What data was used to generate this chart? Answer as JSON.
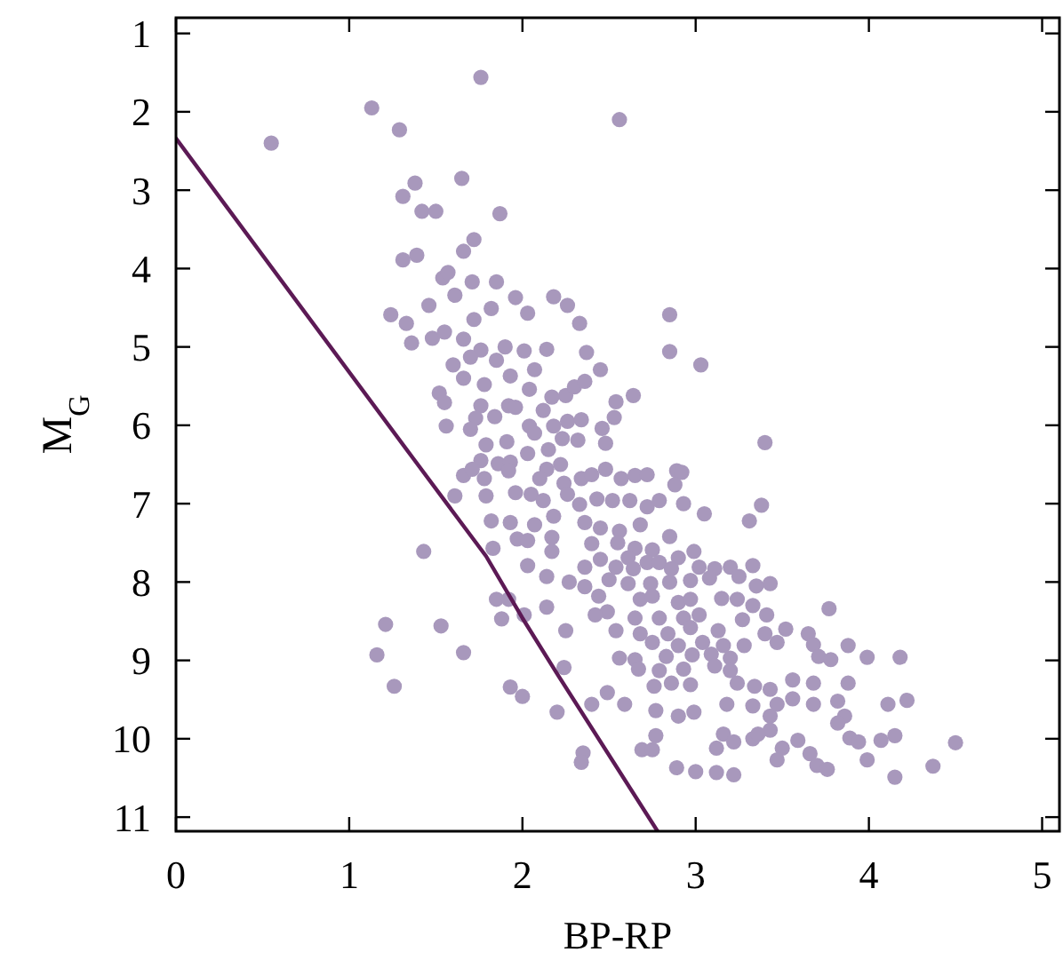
{
  "chart_data": {
    "type": "scatter",
    "xlabel": "BP-RP",
    "ylabel": "M$_{G}$",
    "xlim": [
      0,
      5.1
    ],
    "ylim": [
      11.18,
      0.8
    ],
    "xticks": [
      0,
      1,
      2,
      3,
      4,
      5
    ],
    "yticks": [
      1,
      2,
      3,
      4,
      5,
      6,
      7,
      8,
      9,
      10,
      11
    ],
    "grid": false,
    "marker": "circle",
    "series": [
      {
        "color": "#a898bc",
        "x": [
          1.76,
          1.13,
          2.56,
          0.55,
          1.29,
          1.38,
          1.65,
          1.31,
          1.42,
          1.5,
          1.87,
          1.72,
          1.66,
          1.31,
          1.39,
          1.54,
          1.57,
          1.71,
          1.85,
          1.61,
          1.46,
          1.24,
          1.33,
          1.36,
          1.48,
          1.55,
          1.72,
          1.82,
          1.96,
          2.03,
          2.18,
          2.26,
          2.33,
          2.85,
          2.85,
          3.03,
          1.66,
          1.76,
          1.85,
          1.9,
          2.01,
          2.14,
          1.6,
          1.7,
          2.07,
          2.37,
          2.45,
          1.66,
          1.78,
          1.93,
          2.04,
          1.52,
          1.55,
          1.76,
          1.92,
          1.96,
          2.17,
          2.25,
          2.3,
          2.36,
          2.54,
          2.64,
          2.53,
          1.56,
          1.73,
          1.84,
          2.04,
          2.12,
          1.7,
          2.18,
          2.26,
          2.34,
          2.23,
          2.46,
          2.48,
          3.4,
          2.07,
          1.79,
          1.91,
          2.03,
          2.15,
          2.32,
          1.76,
          1.86,
          1.93,
          1.66,
          1.71,
          1.78,
          1.92,
          2.14,
          2.22,
          2.1,
          2.24,
          2.34,
          2.4,
          2.48,
          2.57,
          2.65,
          2.72,
          2.89,
          2.92,
          2.88,
          1.61,
          1.79,
          1.96,
          2.05,
          2.12,
          2.26,
          2.33,
          2.43,
          2.52,
          2.62,
          2.72,
          2.79,
          2.93,
          3.38,
          3.05,
          1.82,
          1.93,
          2.07,
          2.18,
          2.36,
          2.45,
          2.56,
          2.68,
          3.31,
          1.97,
          2.03,
          2.17,
          2.4,
          2.55,
          2.65,
          2.85,
          2.75,
          1.43,
          1.83,
          2.17,
          2.45,
          2.61,
          2.99,
          2.72,
          2.79,
          2.9,
          2.03,
          2.36,
          2.54,
          2.64,
          2.86,
          3.02,
          3.11,
          3.2,
          3.33,
          2.14,
          2.27,
          2.36,
          2.5,
          2.61,
          2.74,
          2.85,
          2.97,
          3.08,
          3.25,
          3.35,
          3.43,
          1.85,
          1.92,
          2.14,
          2.44,
          2.49,
          2.68,
          2.75,
          2.9,
          2.97,
          3.15,
          3.24,
          3.33,
          3.77,
          1.88,
          2.01,
          2.42,
          2.65,
          2.79,
          2.93,
          3.02,
          3.27,
          3.41,
          1.21,
          1.53,
          2.25,
          2.54,
          2.68,
          2.84,
          2.97,
          3.13,
          3.4,
          3.52,
          3.65,
          2.75,
          2.9,
          3.04,
          3.16,
          3.28,
          3.47,
          3.68,
          3.88,
          1.16,
          1.66,
          2.56,
          2.65,
          2.83,
          2.98,
          3.09,
          3.2,
          3.71,
          3.78,
          3.99,
          4.18,
          2.24,
          2.67,
          2.79,
          2.93,
          3.11,
          3.2,
          1.26,
          1.93,
          2.0,
          2.2,
          2.4,
          2.49,
          2.59,
          2.76,
          2.86,
          2.97,
          3.24,
          3.34,
          3.43,
          3.56,
          3.68,
          3.88,
          3.18,
          3.33,
          3.47,
          3.56,
          3.68,
          3.82,
          4.11,
          4.22,
          2.77,
          2.9,
          2.99,
          3.43,
          3.86,
          3.82,
          3.43,
          3.89,
          3.16,
          3.22,
          3.33,
          3.36,
          3.59,
          3.94,
          4.07,
          4.15,
          4.5,
          2.77,
          2.69,
          2.75,
          3.12,
          3.5,
          2.35,
          2.34,
          3.47,
          3.66,
          3.7,
          3.76,
          3.99,
          2.89,
          3.0,
          3.12,
          3.22,
          4.15,
          4.37
        ],
        "values": [
          1.56,
          1.95,
          2.1,
          2.4,
          2.23,
          2.91,
          2.85,
          3.08,
          3.27,
          3.27,
          3.3,
          3.63,
          3.78,
          3.89,
          3.83,
          4.12,
          4.05,
          4.17,
          4.17,
          4.34,
          4.47,
          4.59,
          4.7,
          4.95,
          4.89,
          4.81,
          4.65,
          4.51,
          4.37,
          4.57,
          4.36,
          4.47,
          4.7,
          4.59,
          5.06,
          5.23,
          4.9,
          5.04,
          5.17,
          5.0,
          5.05,
          5.03,
          5.23,
          5.13,
          5.29,
          5.07,
          5.29,
          5.4,
          5.48,
          5.37,
          5.54,
          5.59,
          5.71,
          5.75,
          5.75,
          5.77,
          5.64,
          5.62,
          5.51,
          5.44,
          5.7,
          5.62,
          5.9,
          6.01,
          5.91,
          5.89,
          6.01,
          5.81,
          6.05,
          6.01,
          5.95,
          5.93,
          6.17,
          6.04,
          6.23,
          6.22,
          6.1,
          6.25,
          6.21,
          6.36,
          6.31,
          6.19,
          6.45,
          6.49,
          6.47,
          6.64,
          6.56,
          6.68,
          6.58,
          6.56,
          6.5,
          6.68,
          6.74,
          6.68,
          6.63,
          6.56,
          6.68,
          6.64,
          6.63,
          6.58,
          6.6,
          6.76,
          6.9,
          6.9,
          6.86,
          6.88,
          6.96,
          6.88,
          7.01,
          6.94,
          6.96,
          6.96,
          7.04,
          6.96,
          7.0,
          7.02,
          7.13,
          7.22,
          7.24,
          7.27,
          7.16,
          7.24,
          7.31,
          7.35,
          7.27,
          7.22,
          7.45,
          7.47,
          7.43,
          7.51,
          7.5,
          7.57,
          7.42,
          7.59,
          7.61,
          7.57,
          7.61,
          7.71,
          7.69,
          7.61,
          7.75,
          7.75,
          7.69,
          7.79,
          7.81,
          7.81,
          7.83,
          7.83,
          7.81,
          7.83,
          7.81,
          7.79,
          7.93,
          8.0,
          8.06,
          7.97,
          8.02,
          8.02,
          8.0,
          7.98,
          7.95,
          7.93,
          8.05,
          8.02,
          8.22,
          8.22,
          8.32,
          8.18,
          8.38,
          8.22,
          8.18,
          8.26,
          8.22,
          8.21,
          8.22,
          8.3,
          8.34,
          8.47,
          8.42,
          8.42,
          8.46,
          8.46,
          8.46,
          8.42,
          8.48,
          8.42,
          8.54,
          8.56,
          8.62,
          8.62,
          8.66,
          8.66,
          8.58,
          8.62,
          8.66,
          8.6,
          8.66,
          8.77,
          8.81,
          8.77,
          8.81,
          8.81,
          8.77,
          8.8,
          8.81,
          8.93,
          8.9,
          8.97,
          8.99,
          8.95,
          8.93,
          8.92,
          8.97,
          8.95,
          8.99,
          8.96,
          8.96,
          9.09,
          9.11,
          9.13,
          9.11,
          9.07,
          9.13,
          9.33,
          9.34,
          9.46,
          9.66,
          9.56,
          9.41,
          9.56,
          9.33,
          9.29,
          9.31,
          9.29,
          9.33,
          9.37,
          9.25,
          9.29,
          9.29,
          9.56,
          9.58,
          9.56,
          9.49,
          9.56,
          9.52,
          9.56,
          9.51,
          9.64,
          9.71,
          9.66,
          9.71,
          9.71,
          9.8,
          9.89,
          9.99,
          9.94,
          10.04,
          10.0,
          9.94,
          10.02,
          10.04,
          10.02,
          9.96,
          10.05,
          9.96,
          10.14,
          10.14,
          10.12,
          10.12,
          10.18,
          10.3,
          10.27,
          10.19,
          10.34,
          10.39,
          10.27,
          10.37,
          10.42,
          10.43,
          10.46,
          10.49,
          10.35
        ]
      },
      {
        "type": "line",
        "color": "#5c1a55",
        "marker": "none",
        "line_style": "solid",
        "x": [
          0,
          1.365,
          1.79,
          2.0,
          2.2,
          2.78
        ],
        "values": [
          2.34,
          6.41,
          7.67,
          8.46,
          9.17,
          11.18
        ]
      }
    ]
  }
}
